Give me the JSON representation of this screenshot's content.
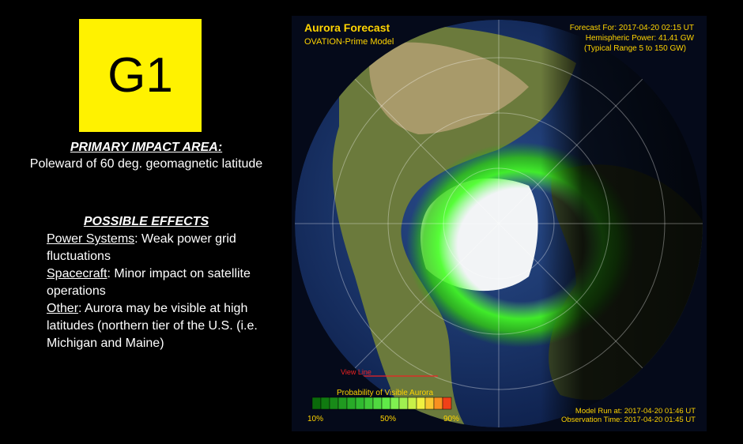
{
  "scale": {
    "label": "G1"
  },
  "impact": {
    "heading": "PRIMARY IMPACT AREA:",
    "text": "Poleward of 60 deg. geomagnetic latitude"
  },
  "effects": {
    "heading": "POSSIBLE EFFECTS",
    "items": [
      {
        "label": "Power Systems",
        "text": ": Weak power grid fluctuations"
      },
      {
        "label": "Spacecraft",
        "text": ": Minor impact on satellite operations"
      },
      {
        "label": "Other",
        "text": ": Aurora may be visible at high latitudes (northern tier of the U.S. (i.e. Michigan and Maine)"
      }
    ]
  },
  "map": {
    "title": "Aurora Forecast",
    "model": "OVATION-Prime Model",
    "forecast_for": "Forecast For: 2017-04-20 02:15 UT",
    "hemispheric_power": "Hemispheric Power: 41.41 GW",
    "typical_range": "(Typical Range 5 to 150 GW)",
    "view_line": "View Line",
    "legend_title": "Probability of Visible Aurora",
    "legend_labels": [
      "10%",
      "50%",
      "90%"
    ],
    "model_run": "Model Run at: 2017-04-20 01:46 UT",
    "observation_time": "Observation Time: 2017-04-20 01:45 UT"
  }
}
